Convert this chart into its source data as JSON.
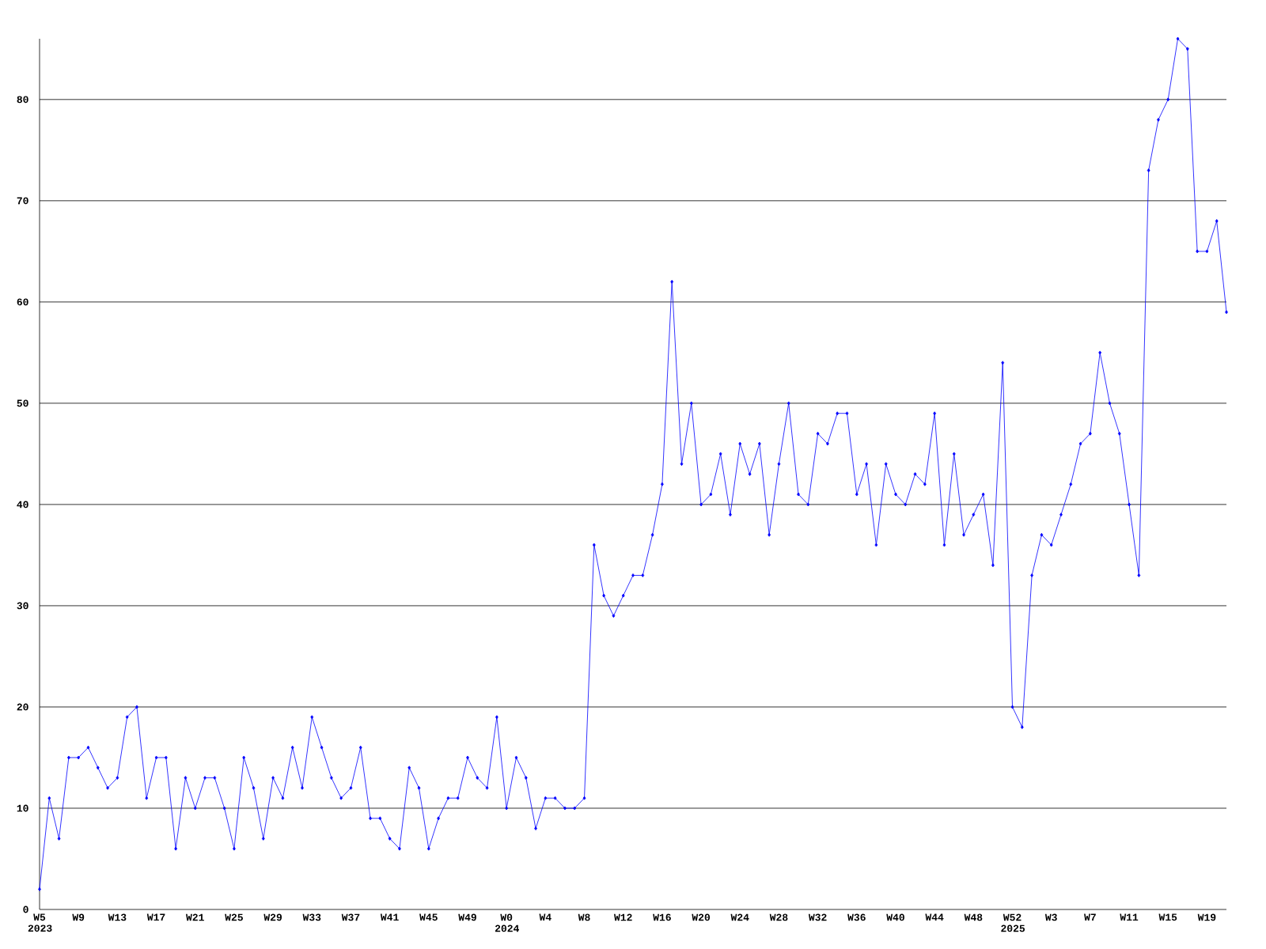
{
  "chart_data": {
    "type": "line",
    "categories": [
      "W5 2023",
      null,
      null,
      null,
      "W9",
      null,
      null,
      null,
      "W13",
      null,
      null,
      null,
      "W17",
      null,
      null,
      null,
      "W21",
      null,
      null,
      null,
      "W25",
      null,
      null,
      null,
      "W29",
      null,
      null,
      null,
      "W33",
      null,
      null,
      null,
      "W37",
      null,
      null,
      null,
      "W41",
      null,
      null,
      null,
      "W45",
      null,
      null,
      null,
      "W49",
      null,
      null,
      null,
      "W0 2024",
      null,
      null,
      null,
      "W4",
      null,
      null,
      null,
      "W8",
      null,
      null,
      null,
      "W12",
      null,
      null,
      null,
      "W16",
      null,
      null,
      null,
      "W20",
      null,
      null,
      null,
      "W24",
      null,
      null,
      null,
      "W28",
      null,
      null,
      null,
      "W32",
      null,
      null,
      null,
      "W36",
      null,
      null,
      null,
      "W40",
      null,
      null,
      null,
      "W44",
      null,
      null,
      null,
      "W48",
      null,
      null,
      null,
      "W52 2025",
      null,
      null,
      null,
      "W3",
      null,
      null,
      null,
      "W7",
      null,
      null,
      null,
      "W11",
      null,
      null,
      null,
      "W15",
      null,
      null,
      null,
      "W19",
      null,
      null
    ],
    "values": [
      2,
      11,
      7,
      15,
      15,
      16,
      14,
      12,
      13,
      19,
      20,
      11,
      15,
      15,
      6,
      13,
      10,
      13,
      13,
      10,
      6,
      15,
      12,
      7,
      13,
      11,
      16,
      12,
      19,
      16,
      13,
      11,
      12,
      16,
      9,
      9,
      7,
      6,
      14,
      12,
      6,
      9,
      11,
      11,
      15,
      13,
      12,
      19,
      10,
      15,
      13,
      8,
      11,
      11,
      10,
      10,
      11,
      36,
      31,
      29,
      31,
      33,
      33,
      37,
      42,
      62,
      44,
      50,
      40,
      41,
      45,
      39,
      46,
      43,
      46,
      37,
      44,
      50,
      41,
      40,
      47,
      46,
      49,
      49,
      41,
      44,
      36,
      44,
      41,
      40,
      43,
      42,
      49,
      36,
      45,
      37,
      39,
      41,
      34,
      54,
      20,
      18,
      33,
      37,
      36,
      39,
      42,
      46,
      47,
      55,
      50,
      47,
      40,
      33,
      73,
      78,
      80,
      86,
      85,
      65,
      65,
      68,
      59
    ],
    "color": "#0000ff",
    "ylim": [
      0,
      86
    ],
    "yticks": [
      0,
      10,
      20,
      30,
      40,
      50,
      60,
      70,
      80
    ],
    "grid": "y",
    "marker": "diamond"
  }
}
